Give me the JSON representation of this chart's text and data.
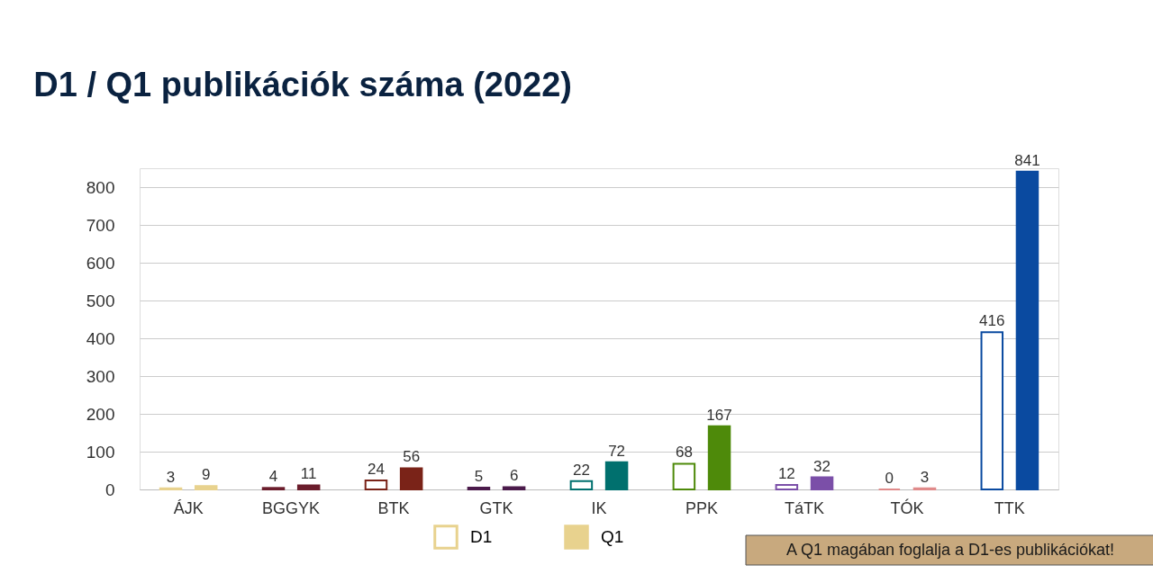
{
  "chart_data": {
    "type": "bar",
    "title": "D1 / Q1 publikációk száma (2022)",
    "categories": [
      "ÁJK",
      "BGGYK",
      "BTK",
      "GTK",
      "IK",
      "PPK",
      "TáTK",
      "TÓK",
      "TTK"
    ],
    "series": [
      {
        "name": "D1",
        "color": "#e8d28e",
        "values": [
          3,
          4,
          24,
          5,
          22,
          68,
          12,
          0,
          416
        ],
        "colors": [
          "#e8d28e",
          "#6b1d2c",
          "#7a2318",
          "#4b1b4b",
          "#00706e",
          "#4e8a0a",
          "#7b4fa8",
          "#e08a8a",
          "#0a4aa0"
        ]
      },
      {
        "name": "Q1",
        "color": "#e8d28e",
        "values": [
          9,
          11,
          56,
          6,
          72,
          167,
          32,
          3,
          841
        ],
        "colors": [
          "#e8d28e",
          "#6b1d2c",
          "#7a2318",
          "#4b1b4b",
          "#00706e",
          "#4e8a0a",
          "#7b4fa8",
          "#e08a8a",
          "#0a4aa0"
        ]
      }
    ],
    "ylim": [
      0,
      850
    ],
    "yticks": [
      0,
      100,
      200,
      300,
      400,
      500,
      600,
      700,
      800
    ],
    "grid": "y",
    "legend": "bottom",
    "data_labels": true,
    "annotations": [
      "A Q1 magában foglalja a D1-es publikációkat!"
    ]
  }
}
